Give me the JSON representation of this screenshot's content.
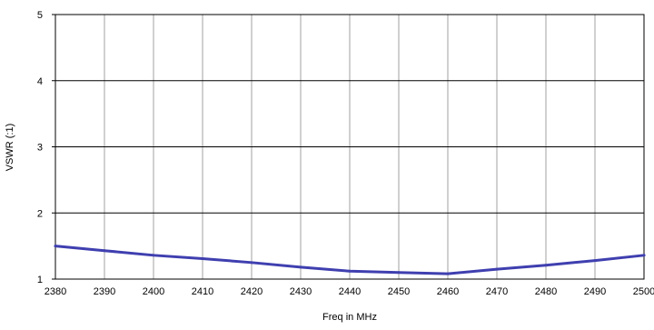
{
  "chart_data": {
    "type": "line",
    "title": "",
    "xlabel": "Freq in MHz",
    "ylabel": "VSWR (:1)",
    "xlim": [
      2380,
      2500
    ],
    "ylim": [
      1,
      5
    ],
    "x_ticks": [
      2380,
      2390,
      2400,
      2410,
      2420,
      2430,
      2440,
      2450,
      2460,
      2470,
      2480,
      2490,
      2500
    ],
    "y_ticks": [
      1,
      2,
      3,
      4,
      5
    ],
    "grid": true,
    "series": [
      {
        "color": "#3f3fb0",
        "x": [
          2380,
          2390,
          2400,
          2410,
          2420,
          2430,
          2440,
          2450,
          2460,
          2470,
          2480,
          2490,
          2500
        ],
        "y": [
          1.5,
          1.43,
          1.36,
          1.31,
          1.25,
          1.18,
          1.12,
          1.1,
          1.08,
          1.15,
          1.21,
          1.28,
          1.36
        ]
      }
    ]
  }
}
